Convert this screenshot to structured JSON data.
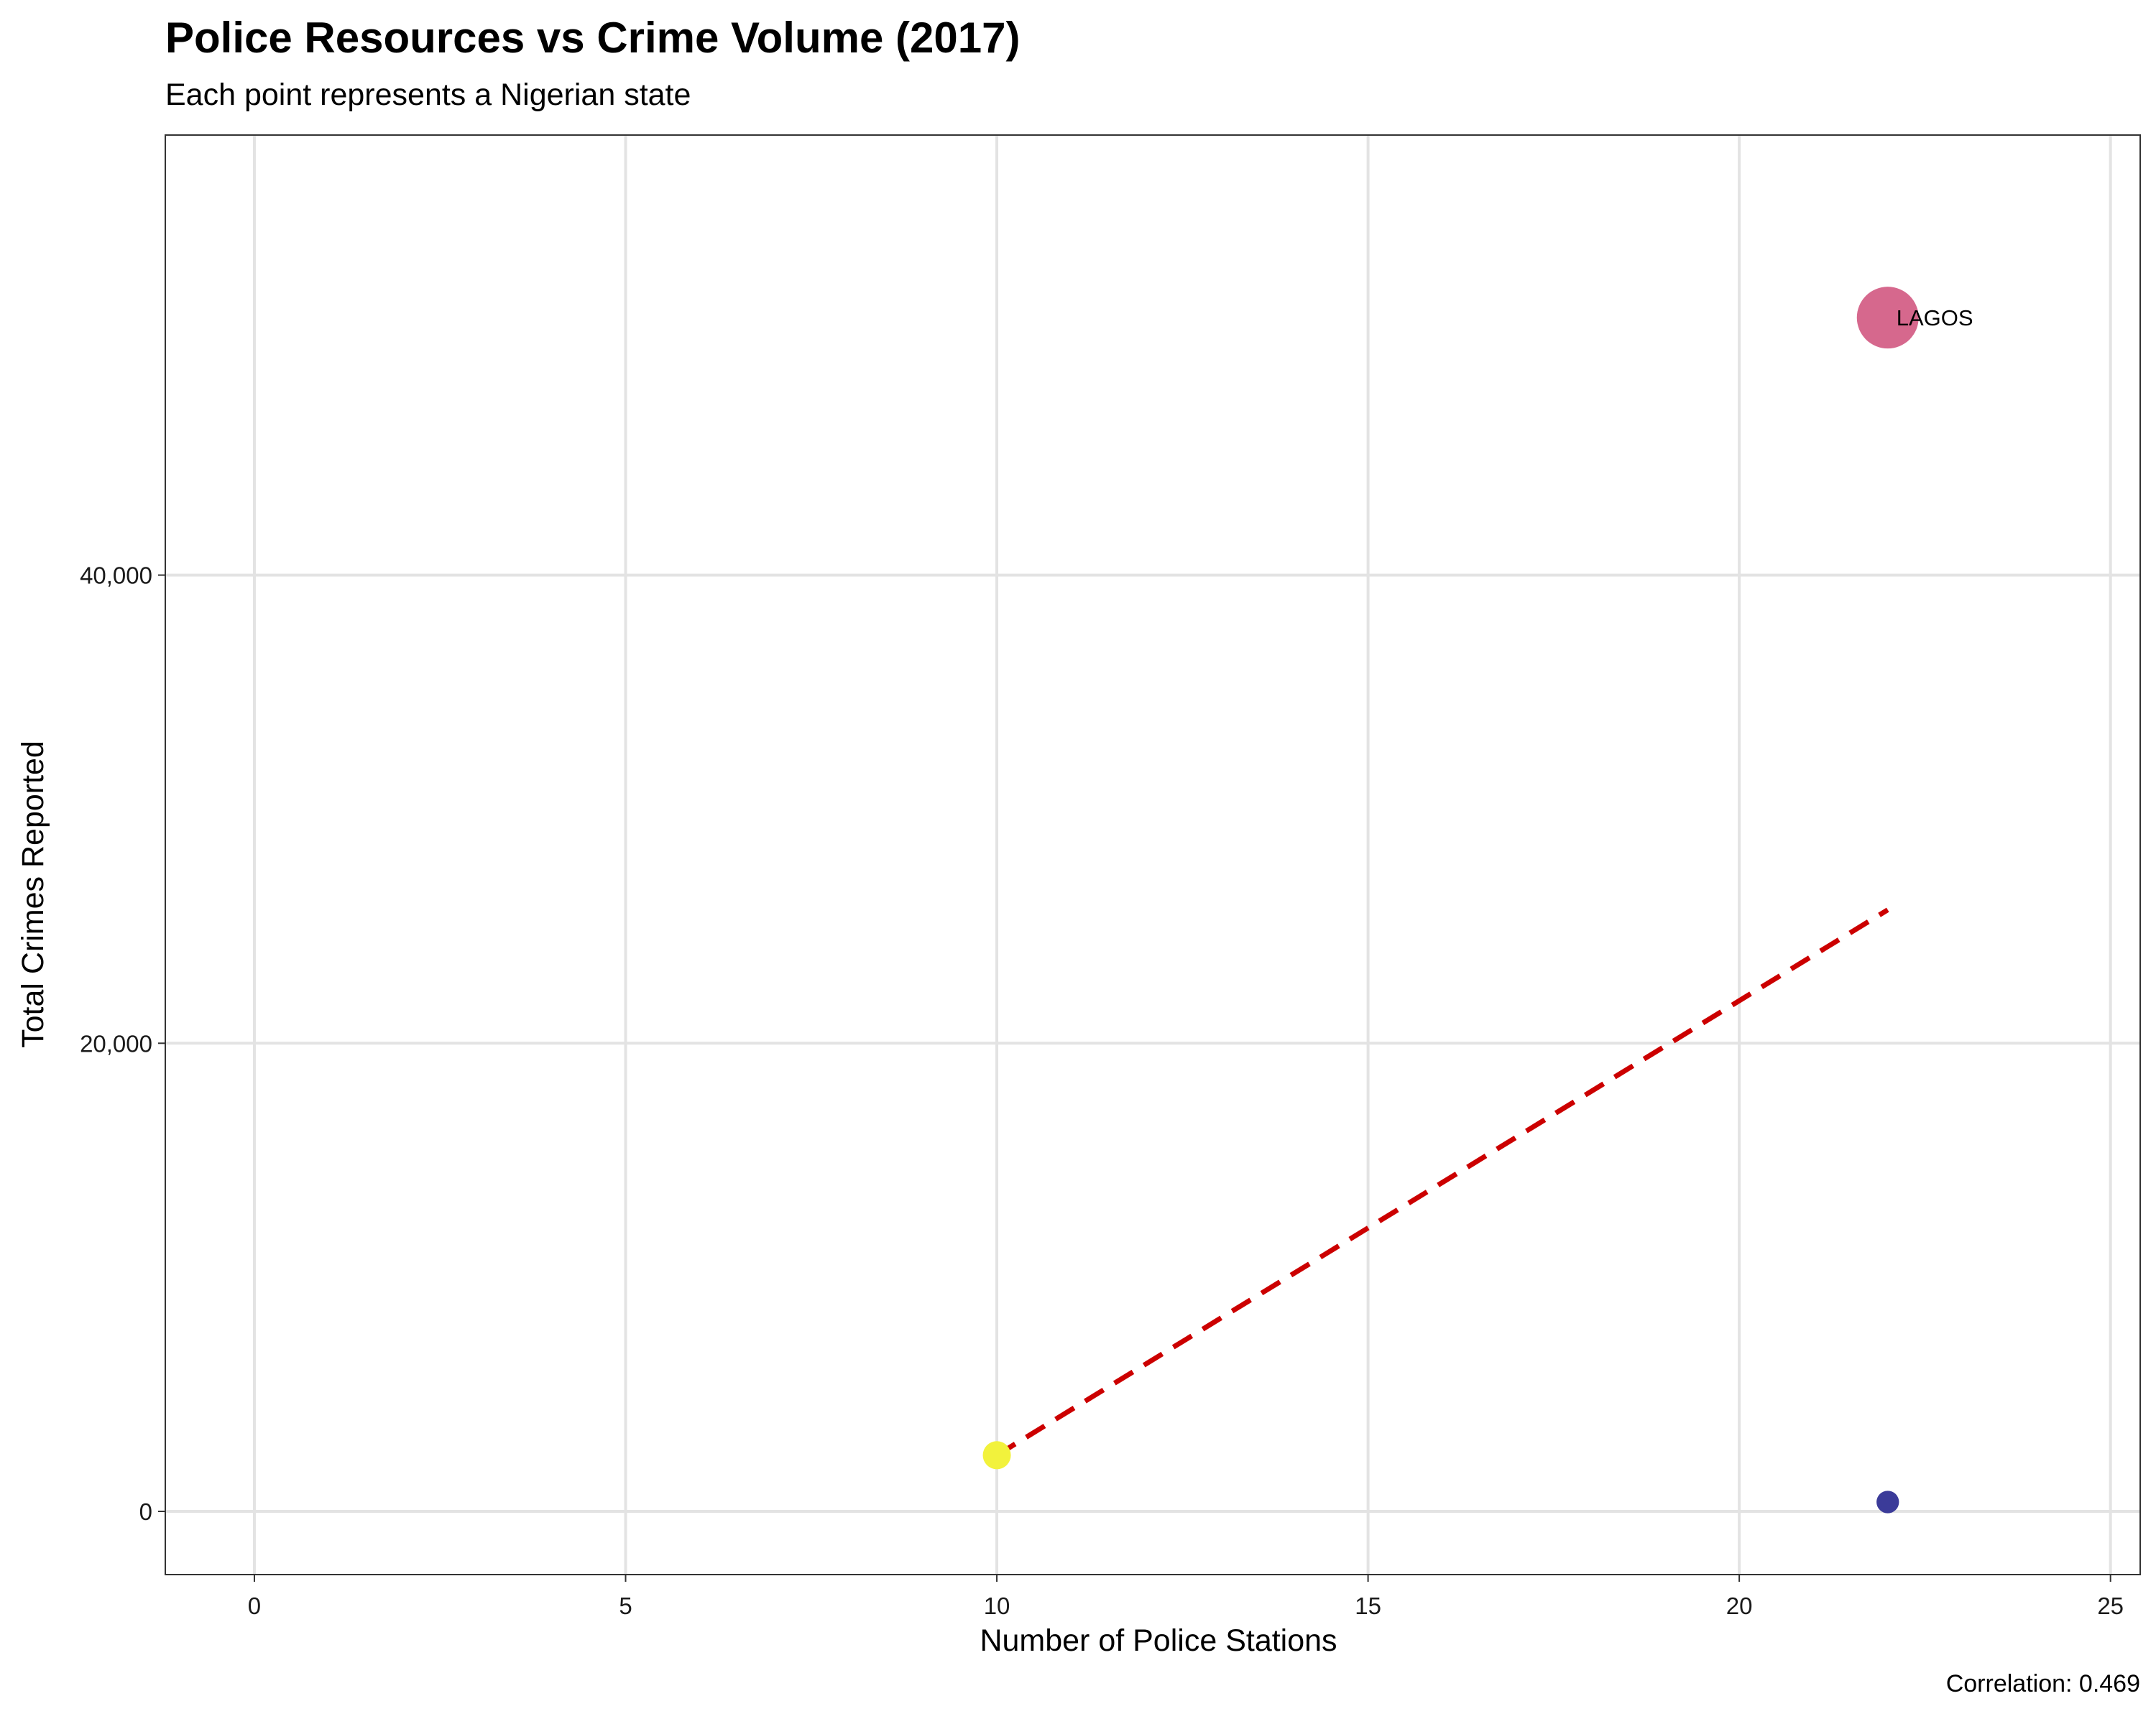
{
  "chart_data": {
    "type": "scatter",
    "title": "Police Resources vs Crime Volume (2017)",
    "subtitle": "Each point represents a Nigerian state",
    "xlabel": "Number of Police Stations",
    "ylabel": "Total Crimes Reported",
    "caption": "Correlation: 0.469",
    "xlim": [
      -1.2,
      25.4
    ],
    "ylim": [
      -2700,
      58800
    ],
    "x_ticks": [
      0,
      5,
      10,
      15,
      20,
      25
    ],
    "x_tick_labels": [
      "0",
      "5",
      "10",
      "15",
      "20",
      "25"
    ],
    "y_ticks": [
      0,
      20000,
      40000
    ],
    "y_tick_labels": [
      "0",
      "20,000",
      "40,000"
    ],
    "grid": true,
    "points": [
      {
        "x": 22,
        "y": 51000,
        "size": 51000,
        "color": "#d6688d",
        "label": "LAGOS"
      },
      {
        "x": 10,
        "y": 2400,
        "size": 2400,
        "color": "#f2f23c",
        "label": ""
      },
      {
        "x": 22,
        "y": 400,
        "size": 400,
        "color": "#3b3b99",
        "label": ""
      }
    ],
    "trend_line": {
      "x": [
        10,
        22
      ],
      "y": [
        2400,
        25700
      ],
      "color": "#cc0000",
      "style": "dashed"
    }
  }
}
